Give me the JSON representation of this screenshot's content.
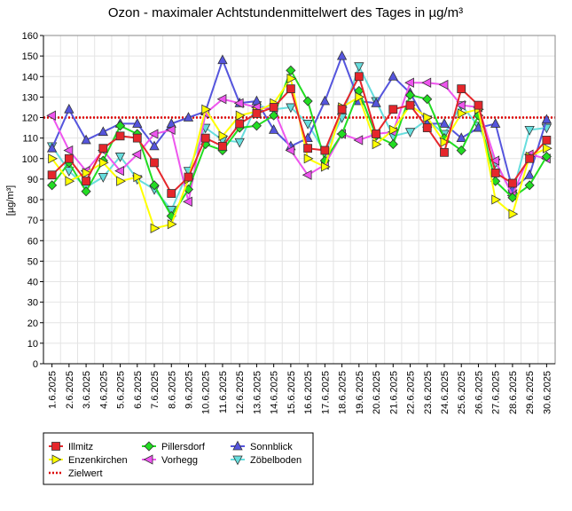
{
  "chart_data": {
    "type": "line",
    "title": "Ozon -  maximaler Achtstundenmittelwert des Tages in µg/m³",
    "ylabel": "[µg/m³]",
    "xlabel": "",
    "ylim": [
      0,
      160
    ],
    "yticks": [
      0,
      10,
      20,
      30,
      40,
      50,
      60,
      70,
      80,
      90,
      100,
      110,
      120,
      130,
      140,
      150,
      160
    ],
    "grid": true,
    "legend_position": "bottom-left",
    "categories": [
      "1.6.2025",
      "2.6.2025",
      "3.6.2025",
      "4.6.2025",
      "5.6.2025",
      "6.6.2025",
      "7.6.2025",
      "8.6.2025",
      "9.6.2025",
      "10.6.2025",
      "11.6.2025",
      "12.6.2025",
      "13.6.2025",
      "14.6.2025",
      "15.6.2025",
      "16.6.2025",
      "17.6.2025",
      "18.6.2025",
      "19.6.2025",
      "20.6.2025",
      "21.6.2025",
      "22.6.2025",
      "23.6.2025",
      "24.6.2025",
      "25.6.2025",
      "26.6.2025",
      "27.6.2025",
      "28.6.2025",
      "29.6.2025",
      "30.6.2025"
    ],
    "series": [
      {
        "name": "Illmitz",
        "color": "#e6262b",
        "marker": "square",
        "values": [
          92,
          100,
          89,
          105,
          111,
          110,
          98,
          83,
          91,
          110,
          106,
          117,
          122,
          125,
          134,
          105,
          104,
          124,
          140,
          112,
          124,
          126,
          115,
          103,
          134,
          126,
          93,
          88,
          100,
          109
        ]
      },
      {
        "name": "Enzenkirchen",
        "color": "#ffff00",
        "marker": "triangle-right",
        "values": [
          100,
          89,
          93,
          98,
          89,
          91,
          66,
          68,
          90,
          124,
          111,
          121,
          123,
          127,
          139,
          100,
          96,
          125,
          130,
          107,
          114,
          126,
          120,
          108,
          122,
          124,
          80,
          73,
          101,
          105
        ]
      },
      {
        "name": "Pillersdorf",
        "color": "#22dd22",
        "marker": "diamond",
        "values": [
          87,
          98,
          84,
          99,
          116,
          112,
          87,
          72,
          85,
          107,
          104,
          115,
          116,
          121,
          143,
          128,
          99,
          112,
          133,
          111,
          107,
          131,
          129,
          110,
          104,
          121,
          89,
          81,
          87,
          101
        ]
      },
      {
        "name": "Vorhegg",
        "color": "#ee55ee",
        "marker": "triangle-left",
        "values": [
          121,
          104,
          94,
          104,
          94,
          102,
          112,
          114,
          79,
          122,
          129,
          127,
          125,
          124,
          104,
          92,
          97,
          112,
          109,
          112,
          113,
          137,
          137,
          136,
          126,
          125,
          99,
          82,
          102,
          100
        ]
      },
      {
        "name": "Sonnblick",
        "color": "#5555dd",
        "marker": "triangle-up",
        "values": [
          105,
          124,
          109,
          113,
          117,
          117,
          106,
          117,
          120,
          123,
          148,
          127,
          128,
          114,
          106,
          110,
          128,
          150,
          128,
          127,
          140,
          132,
          117,
          117,
          110,
          115,
          117,
          85,
          92,
          119
        ]
      },
      {
        "name": "Zöbelboden",
        "color": "#66dddd",
        "marker": "triangle-down",
        "values": [
          106,
          94,
          86,
          91,
          101,
          90,
          85,
          75,
          94,
          115,
          109,
          108,
          126,
          124,
          125,
          117,
          103,
          120,
          145,
          128,
          111,
          113,
          119,
          112,
          126,
          116,
          98,
          83,
          114,
          115
        ]
      }
    ],
    "reference_lines": [
      {
        "name": "Zielwert",
        "value": 120,
        "color": "#dd0000",
        "style": "dotted"
      }
    ]
  }
}
